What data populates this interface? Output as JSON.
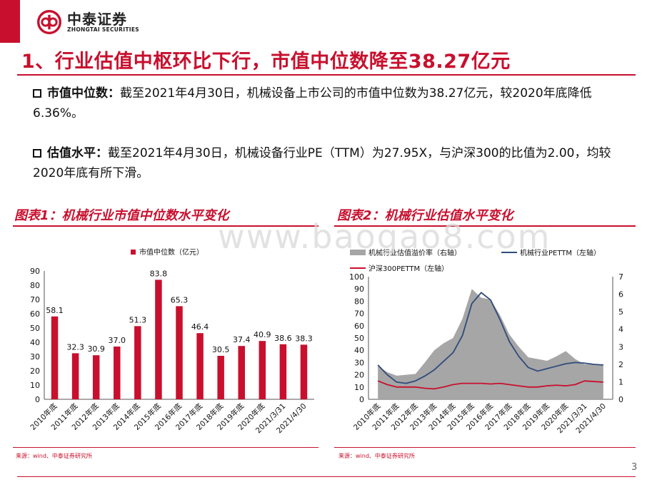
{
  "header": {
    "logo_cn": "中泰证券",
    "logo_en": "ZHONGTAI SECURITIES",
    "title": "1、行业估值中枢环比下行，市值中位数降至38.27亿元"
  },
  "bullets": [
    {
      "key": "市值中位数：",
      "text": "截至2021年4月30日，机械设备上市公司的市值中位数为38.27亿元，较2020年底降低6.36%。"
    },
    {
      "key": "估值水平：",
      "text": "截至2021年4月30日，机械设备行业PE（TTM）为27.95X，与沪深300的比值为2.00，均较2020年底有所下滑。"
    }
  ],
  "figure1": {
    "title": "图表1：机械行业市值中位数水平变化",
    "source": "来源：wind、中泰证券研究所"
  },
  "figure2": {
    "title": "图表2：机械行业估值水平变化",
    "source": "来源：wind、中泰证券研究所"
  },
  "watermark": "www.baogao8.com",
  "page_number": "3",
  "colors": {
    "brand_red": "#c8102e",
    "navy": "#2f4b7c",
    "gray": "#a6a6a6"
  },
  "chart_data": [
    {
      "type": "bar",
      "categories": [
        "2010年底",
        "2011年底",
        "2012年底",
        "2013年底",
        "2014年底",
        "2015年底",
        "2016年底",
        "2017年底",
        "2018年底",
        "2019年底",
        "2020年底",
        "2021/3/31",
        "2021/4/30"
      ],
      "series": [
        {
          "name": "市值中位数（亿元）",
          "values": [
            58.1,
            32.3,
            30.9,
            37.0,
            51.3,
            83.8,
            65.3,
            46.4,
            30.5,
            37.4,
            40.9,
            38.6,
            38.3
          ]
        }
      ],
      "data_labels": [
        "58.1",
        "32.3",
        "30.9",
        "37.0",
        "51.3",
        "83.8",
        "65.3",
        "46.4",
        "30.5",
        "37.4",
        "40.9",
        "38.6",
        "38.3"
      ],
      "ylim": [
        0,
        90
      ],
      "yticks": [
        0,
        10,
        20,
        30,
        40,
        50,
        60,
        70,
        80,
        90
      ],
      "color": "#c8102e",
      "legend": "top-center",
      "grid": false
    },
    {
      "type": "line",
      "categories": [
        "2010年底",
        "2011年底",
        "2012年底",
        "2013年底",
        "2014年底",
        "2015年底",
        "2016年底",
        "2017年底",
        "2018年底",
        "2019年底",
        "2020年底",
        "2021/3/31",
        "2021/4/30"
      ],
      "series": [
        {
          "name": "机械行业估值溢价率（右轴）",
          "kind": "area",
          "axis": "right",
          "color": "#a6a6a6",
          "x": [
            0,
            0.5,
            1,
            1.5,
            2,
            2.5,
            3,
            3.5,
            4,
            4.5,
            5,
            5.5,
            6,
            6.5,
            7,
            7.5,
            8,
            8.5,
            9,
            9.5,
            10,
            10.5,
            11,
            11.5,
            12
          ],
          "values": [
            1.9,
            1.55,
            1.35,
            1.4,
            1.45,
            2.1,
            2.8,
            3.2,
            3.5,
            4.6,
            6.3,
            5.8,
            5.7,
            4.8,
            3.7,
            3.0,
            2.4,
            2.3,
            2.2,
            2.45,
            2.75,
            2.3,
            2.0,
            2.0,
            2.0
          ]
        },
        {
          "name": "机械行业PETTM（左轴）",
          "kind": "line",
          "axis": "left",
          "color": "#2f4b7c",
          "x": [
            0,
            0.5,
            1,
            1.5,
            2,
            2.5,
            3,
            3.5,
            4,
            4.5,
            5,
            5.5,
            6,
            6.5,
            7,
            7.5,
            8,
            8.5,
            9,
            9.5,
            10,
            10.5,
            11,
            11.5,
            12
          ],
          "values": [
            28,
            20,
            14,
            13,
            15,
            19,
            24,
            31,
            38,
            52,
            78,
            87,
            81,
            65,
            47,
            35,
            26,
            23,
            25,
            27,
            29,
            30,
            29.5,
            28.5,
            28
          ]
        },
        {
          "name": "沪深300PETTM（左轴）",
          "kind": "line",
          "axis": "left",
          "color": "#c8102e",
          "x": [
            0,
            0.5,
            1,
            1.5,
            2,
            2.5,
            3,
            3.5,
            4,
            4.5,
            5,
            5.5,
            6,
            6.5,
            7,
            7.5,
            8,
            8.5,
            9,
            9.5,
            10,
            10.5,
            11,
            11.5,
            12
          ],
          "values": [
            15,
            12,
            10,
            10,
            10,
            9,
            8.5,
            10,
            12,
            13,
            13,
            13,
            12.5,
            13,
            12,
            11,
            10,
            10,
            11,
            11.5,
            11,
            12,
            15,
            14.5,
            14
          ]
        }
      ],
      "ylim_left": [
        0,
        100
      ],
      "yticks_left": [
        0,
        10,
        20,
        30,
        40,
        50,
        60,
        70,
        80,
        90,
        100
      ],
      "ylim_right": [
        0,
        7
      ],
      "yticks_right": [
        0,
        1,
        2,
        3,
        4,
        5,
        6,
        7
      ],
      "legend": "top",
      "grid": false
    }
  ]
}
